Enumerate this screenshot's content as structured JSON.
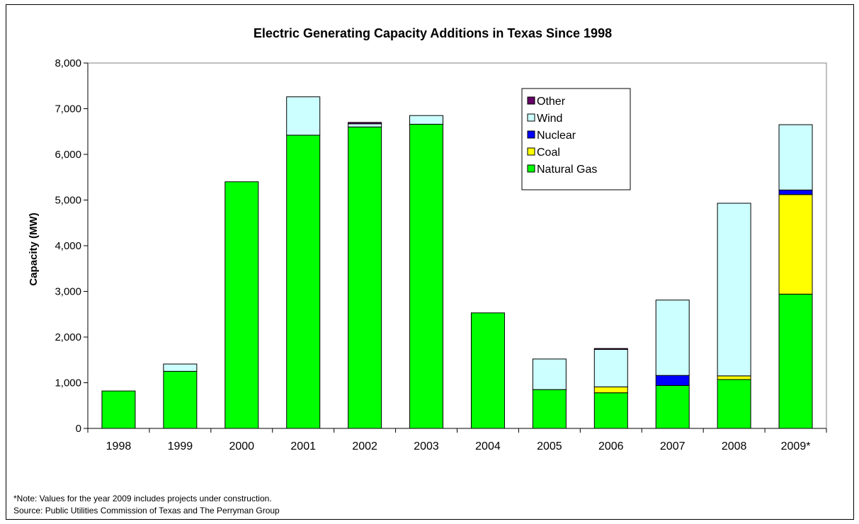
{
  "chart_data": {
    "type": "bar",
    "stacked": true,
    "title": "Electric Generating Capacity Additions in Texas Since 1998",
    "xlabel": "",
    "ylabel": "Capacity (MW)",
    "ylim": [
      0,
      8000
    ],
    "yticks": [
      "0",
      "1,000",
      "2,000",
      "3,000",
      "4,000",
      "5,000",
      "6,000",
      "7,000",
      "8,000"
    ],
    "grid": false,
    "legend_position": "top-right",
    "categories": [
      "1998",
      "1999",
      "2000",
      "2001",
      "2002",
      "2003",
      "2004",
      "2005",
      "2006",
      "2007",
      "2008",
      "2009*"
    ],
    "series": [
      {
        "name": "Natural Gas",
        "color": "#00ff00",
        "values": [
          820,
          1250,
          5400,
          6420,
          6600,
          6660,
          2530,
          850,
          780,
          940,
          1070,
          2940
        ]
      },
      {
        "name": "Coal",
        "color": "#ffff00",
        "values": [
          0,
          0,
          0,
          0,
          0,
          0,
          0,
          0,
          130,
          0,
          80,
          2180
        ]
      },
      {
        "name": "Nuclear",
        "color": "#0000ff",
        "values": [
          0,
          0,
          0,
          0,
          0,
          0,
          0,
          0,
          0,
          220,
          0,
          100
        ]
      },
      {
        "name": "Wind",
        "color": "#ccffff",
        "values": [
          0,
          160,
          0,
          840,
          70,
          190,
          0,
          670,
          820,
          1650,
          3780,
          1430
        ]
      },
      {
        "name": "Other",
        "color": "#660066",
        "values": [
          0,
          0,
          0,
          0,
          30,
          0,
          0,
          0,
          20,
          0,
          0,
          0
        ]
      }
    ]
  },
  "notes": {
    "footnote": "*Note: Values for the year 2009 includes projects under construction.",
    "source": "Source: Public Utilities Commission of Texas and The Perryman Group"
  }
}
